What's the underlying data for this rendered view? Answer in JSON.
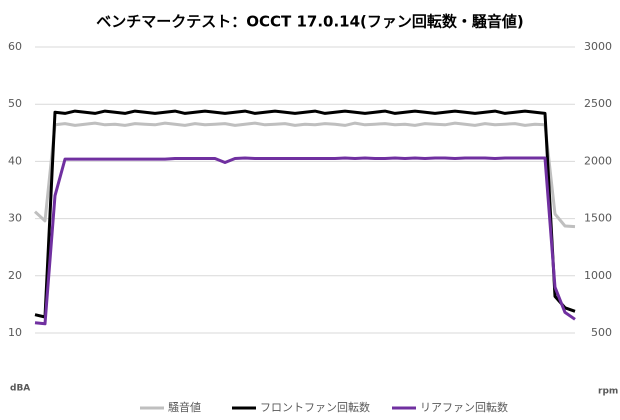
{
  "chart_data": {
    "type": "line",
    "title": "ベンチマークテスト：OCCT 17.0.14(ファン回転数・騒音値)",
    "y_label": "dBA",
    "y2_label": "rpm",
    "categories": [
      null,
      null,
      null,
      null,
      null,
      null,
      null,
      null,
      null,
      null,
      null,
      null,
      null,
      null,
      null,
      null,
      null,
      null,
      null,
      null,
      null,
      null,
      null,
      null,
      null,
      null,
      null,
      null,
      null,
      null,
      null,
      null,
      null,
      null,
      null,
      null,
      null,
      null,
      null,
      null,
      null,
      null,
      null,
      null,
      null,
      null,
      null,
      null,
      null,
      null,
      null,
      null,
      null,
      null,
      null
    ],
    "ylim": [
      10,
      60
    ],
    "yticks": [
      10,
      20,
      30,
      40,
      50,
      60
    ],
    "y2lim": [
      500,
      3000
    ],
    "y2ticks": [
      500,
      1000,
      1500,
      2000,
      2500,
      3000
    ],
    "grid": true,
    "legend": "bottom",
    "series": [
      {
        "name": "騒音値",
        "color": "#bfbfbf",
        "values": [
          31.2,
          29.6,
          46.4,
          46.6,
          46.3,
          46.5,
          46.7,
          46.4,
          46.5,
          46.3,
          46.6,
          46.5,
          46.4,
          46.7,
          46.5,
          46.3,
          46.6,
          46.4,
          46.5,
          46.6,
          46.3,
          46.5,
          46.7,
          46.4,
          46.5,
          46.6,
          46.3,
          46.5,
          46.4,
          46.6,
          46.5,
          46.3,
          46.7,
          46.4,
          46.5,
          46.6,
          46.4,
          46.5,
          46.3,
          46.6,
          46.5,
          46.4,
          46.7,
          46.5,
          46.3,
          46.6,
          46.4,
          46.5,
          46.6,
          46.3,
          46.5,
          46.4,
          30.8,
          28.7,
          28.6
        ]
      },
      {
        "name": "フロントファン回転数",
        "color": "#000000",
        "axis": "y2",
        "values": [
          660,
          640,
          2430,
          2420,
          2440,
          2430,
          2420,
          2440,
          2430,
          2420,
          2440,
          2430,
          2420,
          2430,
          2440,
          2420,
          2430,
          2440,
          2430,
          2420,
          2430,
          2440,
          2420,
          2430,
          2440,
          2430,
          2420,
          2430,
          2440,
          2420,
          2430,
          2440,
          2430,
          2420,
          2430,
          2440,
          2420,
          2430,
          2440,
          2430,
          2420,
          2430,
          2440,
          2430,
          2420,
          2430,
          2440,
          2420,
          2430,
          2440,
          2430,
          2420,
          820,
          720,
          690
        ]
      },
      {
        "name": "リアファン回転数",
        "color": "#7030a0",
        "axis": "y2",
        "values": [
          590,
          580,
          1700,
          2020,
          2020,
          2020,
          2020,
          2020,
          2020,
          2020,
          2020,
          2020,
          2020,
          2020,
          2025,
          2025,
          2025,
          2025,
          2025,
          1990,
          2025,
          2030,
          2025,
          2025,
          2025,
          2025,
          2025,
          2025,
          2025,
          2025,
          2025,
          2030,
          2025,
          2030,
          2025,
          2025,
          2030,
          2025,
          2030,
          2025,
          2030,
          2030,
          2025,
          2030,
          2030,
          2030,
          2025,
          2030,
          2030,
          2030,
          2030,
          2030,
          900,
          680,
          620
        ]
      }
    ]
  }
}
